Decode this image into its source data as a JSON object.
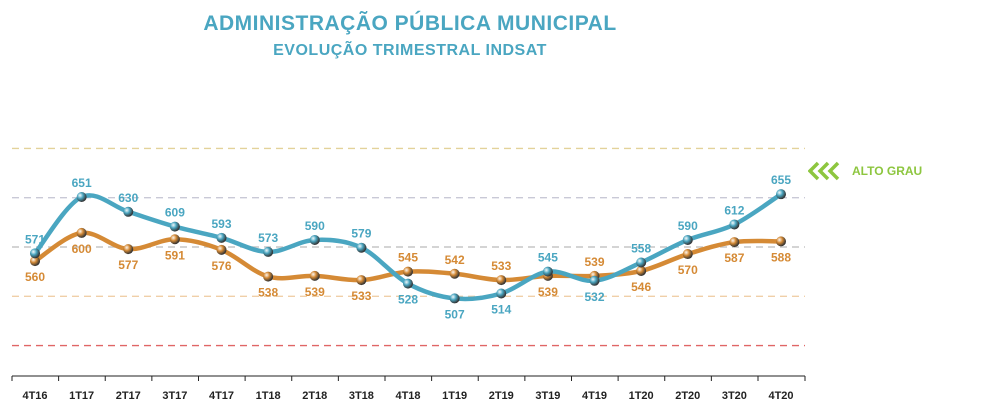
{
  "chart_data": {
    "type": "line",
    "title": "ADMINISTRAÇÃO PÚBLICA MUNICIPAL",
    "subtitle": "EVOLUÇÃO TRIMESTRAL INDSAT",
    "categories": [
      "4T16",
      "1T17",
      "2T17",
      "3T17",
      "4T17",
      "1T18",
      "2T18",
      "3T18",
      "4T18",
      "1T19",
      "2T19",
      "3T19",
      "4T19",
      "1T20",
      "2T20",
      "3T20",
      "4T20"
    ],
    "series": [
      {
        "values": [
          571,
          651,
          630,
          609,
          593,
          573,
          590,
          579,
          528,
          507,
          514,
          545,
          532,
          558,
          590,
          612,
          655
        ],
        "color": "#4aa6c1"
      },
      {
        "values": [
          560,
          600,
          577,
          591,
          576,
          538,
          539,
          533,
          545,
          542,
          533,
          539,
          539,
          546,
          570,
          587,
          588
        ],
        "color": "#d58a35"
      }
    ],
    "reference_lines": [
      {
        "value": 720,
        "color": "#e3d29a"
      },
      {
        "value": 650,
        "color": "#c9c9d6"
      },
      {
        "value": 580,
        "color": "#c6c6c6"
      },
      {
        "value": 510,
        "color": "#f0cfa8"
      },
      {
        "value": 440,
        "color": "#e06666"
      }
    ],
    "annotation": {
      "label": "ALTO GRAU",
      "color": "#8dc63f"
    },
    "ylim": [
      380,
      800
    ]
  }
}
